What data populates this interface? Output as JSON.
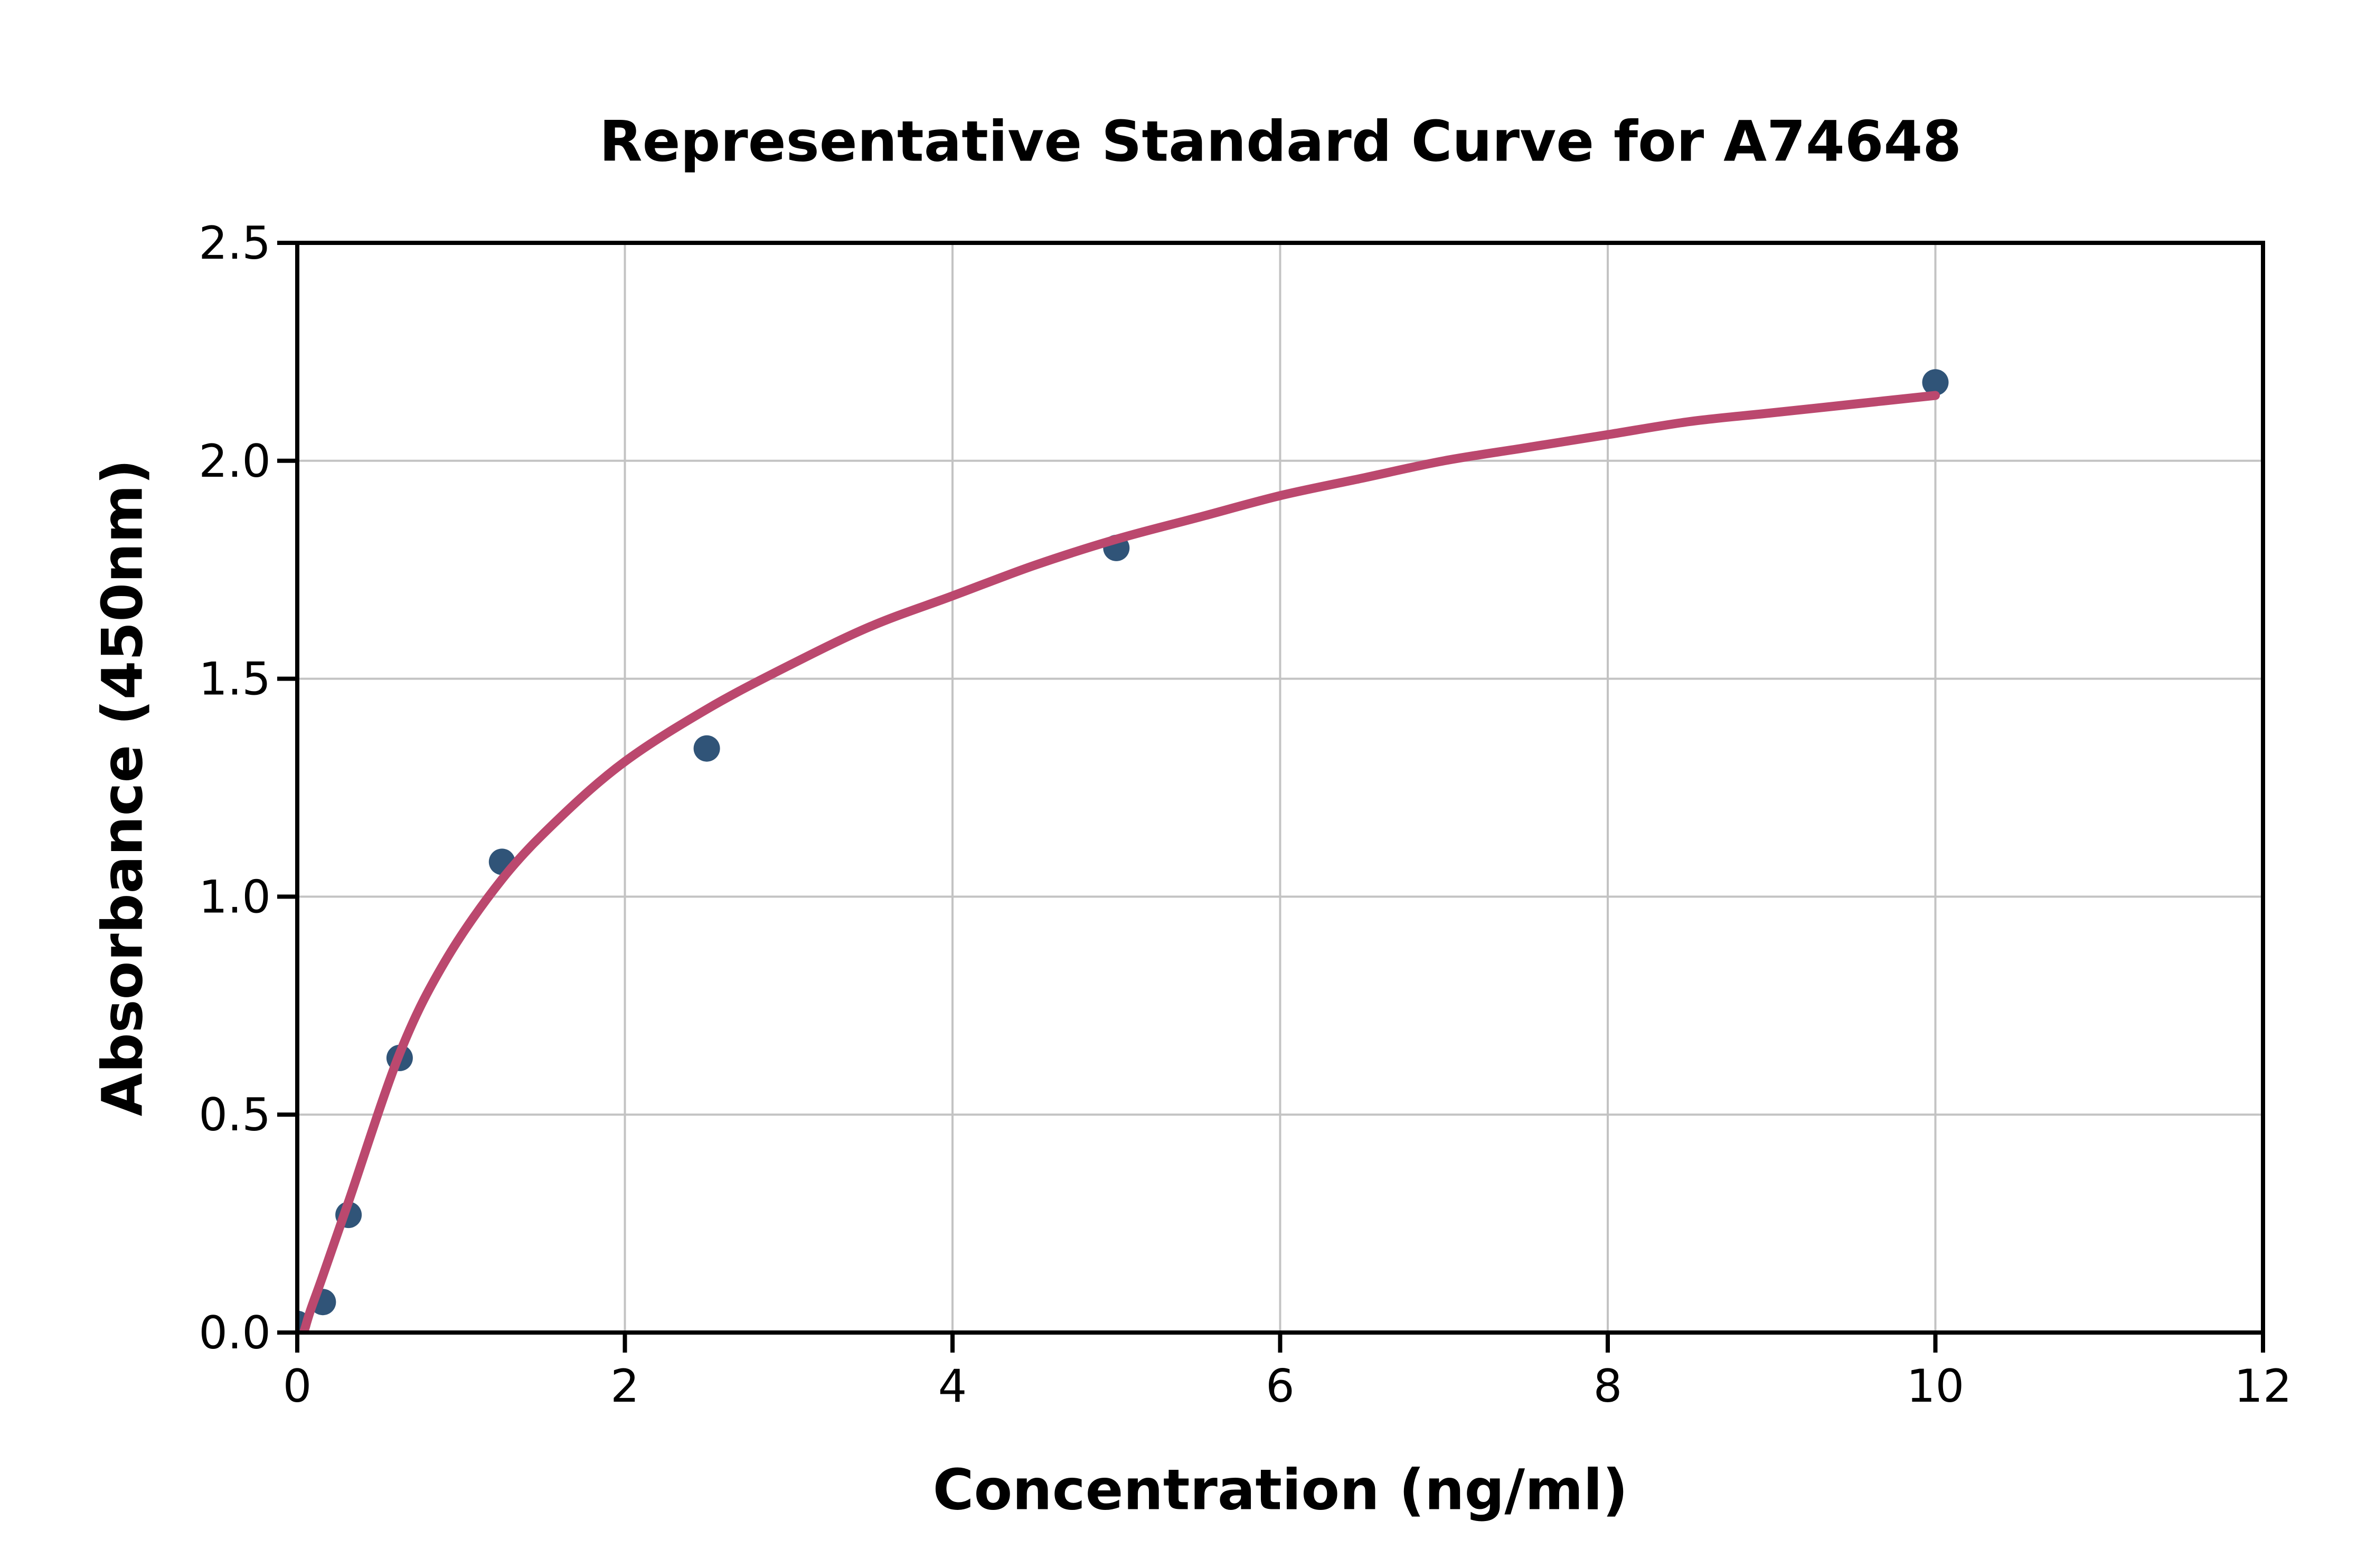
{
  "chart_data": {
    "type": "scatter",
    "title": "Representative Standard Curve for A74648",
    "xlabel": "Concentration (ng/ml)",
    "ylabel": "Absorbance (450nm)",
    "xlim": [
      0,
      12
    ],
    "ylim": [
      0,
      2.5
    ],
    "grid": true,
    "legend": false,
    "x_ticks": {
      "values": [
        0,
        2,
        4,
        6,
        8,
        10,
        12
      ],
      "labels": [
        "0",
        "2",
        "4",
        "6",
        "8",
        "10",
        "12"
      ]
    },
    "y_ticks": {
      "values": [
        0,
        0.5,
        1,
        1.5,
        2,
        2.5
      ],
      "labels": [
        "0.0",
        "0.5",
        "1.0",
        "1.5",
        "2.0",
        "2.5"
      ]
    },
    "series": [
      {
        "name": "standard-points",
        "type": "scatter",
        "color": "#305478",
        "points": [
          [
            0,
            0.02
          ],
          [
            0.156,
            0.07
          ],
          [
            0.313,
            0.27
          ],
          [
            0.625,
            0.63
          ],
          [
            1.25,
            1.08
          ],
          [
            2.5,
            1.34
          ],
          [
            5,
            1.8
          ],
          [
            10,
            2.18
          ]
        ]
      },
      {
        "name": "fitted-curve",
        "type": "line",
        "color": "#bb486e",
        "points": [
          [
            0.04,
            0.0
          ],
          [
            0.08,
            0.05
          ],
          [
            0.156,
            0.13
          ],
          [
            0.313,
            0.3
          ],
          [
            0.625,
            0.64
          ],
          [
            0.9,
            0.85
          ],
          [
            1.25,
            1.04
          ],
          [
            1.6,
            1.18
          ],
          [
            2.0,
            1.31
          ],
          [
            2.5,
            1.43
          ],
          [
            3.0,
            1.53
          ],
          [
            3.5,
            1.62
          ],
          [
            4.0,
            1.69
          ],
          [
            4.5,
            1.76
          ],
          [
            5.0,
            1.82
          ],
          [
            5.5,
            1.87
          ],
          [
            6.0,
            1.92
          ],
          [
            6.5,
            1.96
          ],
          [
            7.0,
            2.0
          ],
          [
            7.5,
            2.03
          ],
          [
            8.0,
            2.06
          ],
          [
            8.5,
            2.09
          ],
          [
            9.0,
            2.11
          ],
          [
            9.5,
            2.13
          ],
          [
            10.0,
            2.15
          ]
        ]
      }
    ]
  },
  "styles": {
    "background": "#ffffff",
    "grid_color": "#c3c3c3",
    "spine_color": "#000000",
    "tick_color": "#000000",
    "text_color": "#000000",
    "point_color": "#305478",
    "curve_color": "#bb486e"
  }
}
